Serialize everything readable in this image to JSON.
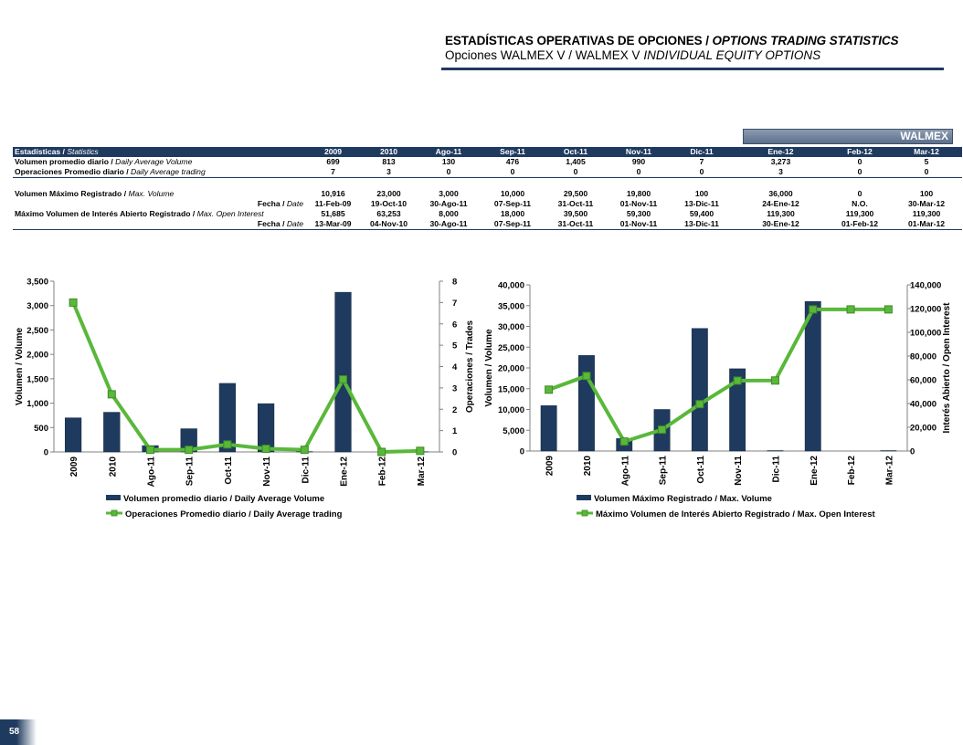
{
  "header": {
    "title_es": "ESTADÍSTICAS OPERATIVAS DE OPCIONES",
    "title_sep": " / ",
    "title_en": "OPTIONS TRADING STATISTICS",
    "subtitle_es": "Opciones WALMEX V / WALMEX V",
    "subtitle_en": "INDIVIDUAL EQUITY OPTIONS"
  },
  "brand_tag": "WALMEX",
  "table": {
    "header_label_es": "Estadísticas / ",
    "header_label_en": "Statistics",
    "columns": [
      "2009",
      "2010",
      "Ago-11",
      "Sep-11",
      "Oct-11",
      "Nov-11",
      "Dic-11",
      "Ene-12",
      "Feb-12",
      "Mar-12"
    ],
    "rows": [
      {
        "label_es": "Volumen promedio diario / ",
        "label_en": "Daily Average Volume",
        "values": [
          "699",
          "813",
          "130",
          "476",
          "1,405",
          "990",
          "7",
          "3,273",
          "0",
          "5"
        ]
      },
      {
        "label_es": "Operaciones Promedio diario / ",
        "label_en": "Daily Average trading",
        "values": [
          "7",
          "3",
          "0",
          "0",
          "0",
          "0",
          "0",
          "3",
          "0",
          "0"
        ]
      },
      {
        "label_es": "Volumen Máximo Registrado / ",
        "label_en": "Max. Volume",
        "values": [
          "10,916",
          "23,000",
          "3,000",
          "10,000",
          "29,500",
          "19,800",
          "100",
          "36,000",
          "0",
          "100"
        ]
      },
      {
        "label_es": "Fecha / ",
        "label_en": "Date",
        "values": [
          "11-Feb-09",
          "19-Oct-10",
          "30-Ago-11",
          "07-Sep-11",
          "31-Oct-11",
          "01-Nov-11",
          "13-Dic-11",
          "24-Ene-12",
          "N.O.",
          "30-Mar-12"
        ]
      },
      {
        "label_es": "Máximo Volumen de Interés Abierto Registrado / ",
        "label_en": "Max. Open Interest",
        "values": [
          "51,685",
          "63,253",
          "8,000",
          "18,000",
          "39,500",
          "59,300",
          "59,400",
          "119,300",
          "119,300",
          "119,300"
        ]
      },
      {
        "label_es": "Fecha / ",
        "label_en": "Date",
        "values": [
          "13-Mar-09",
          "04-Nov-10",
          "30-Ago-11",
          "07-Sep-11",
          "31-Oct-11",
          "01-Nov-11",
          "13-Dic-11",
          "30-Ene-12",
          "01-Feb-12",
          "01-Mar-12"
        ]
      }
    ]
  },
  "chart_data": [
    {
      "type": "bar",
      "categories": [
        "2009",
        "2010",
        "Ago-11",
        "Sep-11",
        "Oct-11",
        "Nov-11",
        "Dic-11",
        "Ene-12",
        "Feb-12",
        "Mar-12"
      ],
      "series": [
        {
          "name": "Volumen promedio diario / Daily Average  Volume",
          "type": "bar",
          "axis": "left",
          "values": [
            699,
            813,
            130,
            476,
            1405,
            990,
            7,
            3273,
            0,
            5
          ]
        },
        {
          "name": "Operaciones Promedio diario / Daily Average trading",
          "type": "line",
          "axis": "right",
          "values": [
            7,
            2.7,
            0.1,
            0.1,
            0.35,
            0.15,
            0.1,
            3.4,
            0,
            0.05
          ]
        }
      ],
      "ylabel": "Volumen / Volume",
      "y2label": "Operaciones / Trades",
      "ylim": [
        0,
        3500
      ],
      "y2lim": [
        0,
        8
      ],
      "yticks": [
        "0",
        "500",
        "1,000",
        "1,500",
        "2,000",
        "2,500",
        "3,000",
        "3,500"
      ],
      "y2ticks": [
        "0",
        "1",
        "2",
        "3",
        "4",
        "5",
        "6",
        "7",
        "8"
      ],
      "grid": false,
      "legend": "bottom",
      "colors": {
        "bar": "#1f3a5f",
        "line": "#59b83a"
      }
    },
    {
      "type": "bar",
      "categories": [
        "2009",
        "2010",
        "Ago-11",
        "Sep-11",
        "Oct-11",
        "Nov-11",
        "Dic-11",
        "Ene-12",
        "Feb-12",
        "Mar-12"
      ],
      "series": [
        {
          "name": "Volumen Máximo Registrado  / Max. Volume",
          "type": "bar",
          "axis": "left",
          "values": [
            10916,
            23000,
            3000,
            10000,
            29500,
            19800,
            100,
            36000,
            0,
            100
          ]
        },
        {
          "name": "Máximo Volumen de Interés Abierto Registrado  / Max. Open Interest",
          "type": "line",
          "axis": "right",
          "values": [
            51685,
            63253,
            8000,
            18000,
            39500,
            59300,
            59400,
            119300,
            119300,
            119300
          ]
        }
      ],
      "ylabel": "Volumen / Volume",
      "y2label": "Interés Abierto / Open Interest",
      "ylim": [
        0,
        40000
      ],
      "y2lim": [
        0,
        140000
      ],
      "yticks": [
        "0",
        "5,000",
        "10,000",
        "15,000",
        "20,000",
        "25,000",
        "30,000",
        "35,000",
        "40,000"
      ],
      "y2ticks": [
        "0",
        "20,000",
        "40,000",
        "60,000",
        "80,000",
        "100,000",
        "120,000",
        "140,000"
      ],
      "grid": false,
      "legend": "bottom",
      "colors": {
        "bar": "#1f3a5f",
        "line": "#59b83a"
      }
    }
  ],
  "page_number": "58"
}
